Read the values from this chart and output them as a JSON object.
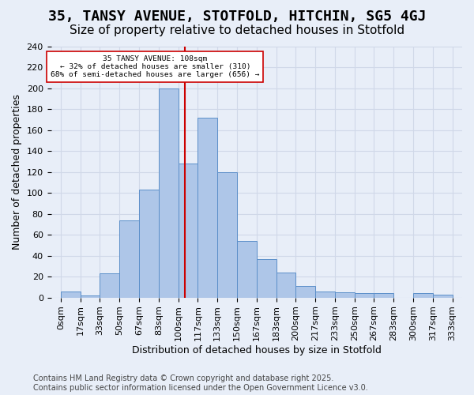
{
  "title": "35, TANSY AVENUE, STOTFOLD, HITCHIN, SG5 4GJ",
  "subtitle": "Size of property relative to detached houses in Stotfold",
  "xlabel": "Distribution of detached houses by size in Stotfold",
  "ylabel": "Number of detached properties",
  "footer": "Contains HM Land Registry data © Crown copyright and database right 2025.\nContains public sector information licensed under the Open Government Licence v3.0.",
  "bin_edge_labels": [
    "0sqm",
    "17sqm",
    "33sqm",
    "50sqm",
    "67sqm",
    "83sqm",
    "100sqm",
    "117sqm",
    "133sqm",
    "150sqm",
    "167sqm",
    "183sqm",
    "200sqm",
    "217sqm",
    "233sqm",
    "250sqm",
    "267sqm",
    "283sqm",
    "300sqm",
    "317sqm",
    "333sqm"
  ],
  "bar_values": [
    6,
    2,
    23,
    74,
    103,
    200,
    128,
    172,
    120,
    54,
    37,
    24,
    11,
    6,
    5,
    4,
    4,
    0,
    4,
    3
  ],
  "bar_color": "#aec6e8",
  "bar_edge_color": "#5b8fc9",
  "grid_color": "#d0d8e8",
  "background_color": "#e8eef8",
  "vline_x": 108,
  "vline_label": "35 TANSY AVENUE: 108sqm",
  "annotation_line1": "← 32% of detached houses are smaller (310)",
  "annotation_line2": "68% of semi-detached houses are larger (656) →",
  "annotation_box_color": "#ffffff",
  "annotation_box_edge": "#cc0000",
  "vline_color": "#cc0000",
  "bin_width": 17,
  "ylim": [
    0,
    240
  ],
  "yticks": [
    0,
    20,
    40,
    60,
    80,
    100,
    120,
    140,
    160,
    180,
    200,
    220,
    240
  ],
  "title_fontsize": 13,
  "subtitle_fontsize": 11,
  "label_fontsize": 9,
  "tick_fontsize": 8,
  "footer_fontsize": 7
}
